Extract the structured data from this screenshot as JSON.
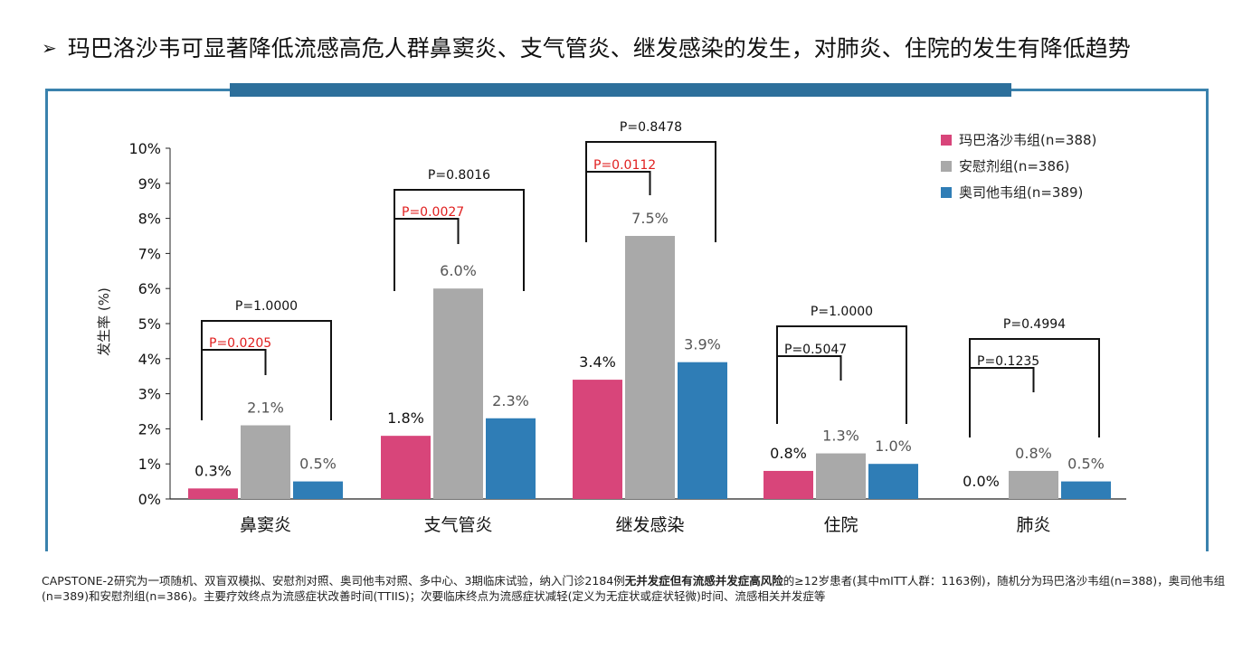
{
  "headline": {
    "marker": "➢",
    "text": "玛巴洛沙韦可显著降低流感高危人群鼻窦炎、支气管炎、继发感染的发生，对肺炎、住院的发生有降低趋势"
  },
  "colors": {
    "baloxavir": "#d8457a",
    "placebo": "#a9a9a9",
    "oseltamivir": "#2f7db6",
    "frame": "#3a82ad",
    "topbar": "#2d6f9b",
    "p_significant": "#e02020",
    "p_normal": "#111111"
  },
  "chart_data": {
    "type": "bar",
    "ylabel": "发生率 (%)",
    "xlabel": "",
    "ylim": [
      0,
      10
    ],
    "yticks": [
      "0%",
      "1%",
      "2%",
      "3%",
      "4%",
      "5%",
      "6%",
      "7%",
      "8%",
      "9%",
      "10%"
    ],
    "categories": [
      "鼻窦炎",
      "支气管炎",
      "继发感染",
      "住院",
      "肺炎"
    ],
    "series": [
      {
        "name": "玛巴洛沙韦组(n=388)",
        "key": "baloxavir",
        "values": [
          0.3,
          1.8,
          3.4,
          0.8,
          0.0
        ],
        "labels": [
          "0.3%",
          "1.8%",
          "3.4%",
          "0.8%",
          "0.0%"
        ]
      },
      {
        "name": "安慰剂组(n=386)",
        "key": "placebo",
        "values": [
          2.1,
          6.0,
          7.5,
          1.3,
          0.8
        ],
        "labels": [
          "2.1%",
          "6.0%",
          "7.5%",
          "1.3%",
          "0.8%"
        ]
      },
      {
        "name": "奥司他韦组(n=389)",
        "key": "oseltamivir",
        "values": [
          0.5,
          2.3,
          3.9,
          1.0,
          0.5
        ],
        "labels": [
          "0.5%",
          "2.3%",
          "3.9%",
          "1.0%",
          "0.5%"
        ]
      }
    ],
    "p_values": [
      {
        "category": "鼻窦炎",
        "vs_placebo": "P=0.0205",
        "vs_placebo_significant": true,
        "vs_oseltamivir": "P=1.0000"
      },
      {
        "category": "支气管炎",
        "vs_placebo": "P=0.0027",
        "vs_placebo_significant": true,
        "vs_oseltamivir": "P=0.8016"
      },
      {
        "category": "继发感染",
        "vs_placebo": "P=0.0112",
        "vs_placebo_significant": true,
        "vs_oseltamivir": "P=0.8478"
      },
      {
        "category": "住院",
        "vs_placebo": "P=0.5047",
        "vs_placebo_significant": false,
        "vs_oseltamivir": "P=1.0000"
      },
      {
        "category": "肺炎",
        "vs_placebo": "P=0.1235",
        "vs_placebo_significant": false,
        "vs_oseltamivir": "P=0.4994"
      }
    ],
    "legend_position": "top-right"
  },
  "footnote": {
    "part1": "CAPSTONE-2研究为一项随机、双盲双模拟、安慰剂对照、奥司他韦对照、多中心、3期临床试验，纳入门诊2184例",
    "bold": "无并发症但有流感并发症高风险",
    "part2": "的≥12岁患者(其中mITT人群：1163例)，随机分为玛巴洛沙韦组(n=388)，奥司他韦组(n=389)和安慰剂组(n=386)。主要疗效终点为流感症状改善时间(TTIIS)；次要临床终点为流感症状减轻(定义为无症状或症状轻微)时间、流感相关并发症等"
  }
}
